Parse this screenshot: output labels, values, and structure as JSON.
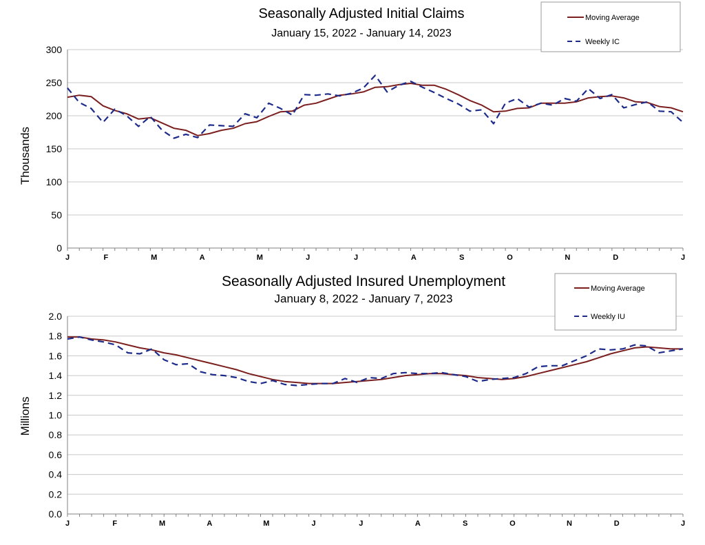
{
  "colors": {
    "moving_average": "#7b1e1e",
    "weekly": "#1c2a8a",
    "grid": "#c8c8c8",
    "axis": "#808080"
  },
  "chart_data": [
    {
      "type": "line",
      "title": "Seasonally Adjusted Initial Claims",
      "subtitle": "January 15, 2022 - January 14, 2023",
      "ylabel": "Thousands",
      "xlabel": "",
      "ylim": [
        0,
        300
      ],
      "yticks": [
        "0",
        "50",
        "100",
        "150",
        "200",
        "250",
        "300"
      ],
      "ytick_values": [
        0,
        50,
        100,
        150,
        200,
        250,
        300
      ],
      "month_labels": [
        "J",
        "F",
        "M",
        "A",
        "M",
        "J",
        "J",
        "A",
        "S",
        "O",
        "N",
        "D",
        "J"
      ],
      "month_label_weeks": [
        0,
        4,
        9,
        14,
        20,
        25,
        30,
        36,
        41,
        46,
        52,
        57,
        64
      ],
      "grid": true,
      "legend_position": "top-right",
      "series": [
        {
          "name": "Moving Average",
          "style": "solid",
          "values": [
            228,
            231,
            229,
            215,
            208,
            203,
            195,
            197,
            189,
            181,
            178,
            170,
            173,
            178,
            181,
            188,
            191,
            199,
            206,
            207,
            216,
            219,
            225,
            231,
            233,
            236,
            243,
            244,
            247,
            249,
            246,
            246,
            240,
            232,
            223,
            216,
            206,
            207,
            211,
            212,
            219,
            219,
            219,
            221,
            227,
            229,
            230,
            227,
            221,
            220,
            214,
            212,
            206
          ]
        },
        {
          "name": "Weekly IC",
          "style": "dashed",
          "values": [
            242,
            220,
            211,
            190,
            210,
            200,
            184,
            199,
            178,
            166,
            172,
            167,
            186,
            185,
            184,
            203,
            197,
            219,
            211,
            201,
            232,
            231,
            233,
            230,
            234,
            242,
            261,
            236,
            246,
            252,
            243,
            235,
            226,
            218,
            207,
            209,
            188,
            219,
            226,
            213,
            219,
            216,
            226,
            222,
            241,
            226,
            232,
            212,
            217,
            221,
            207,
            206,
            190
          ]
        }
      ]
    },
    {
      "type": "line",
      "title": "Seasonally Adjusted Insured Unemployment",
      "subtitle": "January 8, 2022 - January 7, 2023",
      "ylabel": "Millions",
      "xlabel": "",
      "ylim": [
        0,
        2
      ],
      "yticks": [
        "0.0",
        "0.2",
        "0.4",
        "0.6",
        "0.8",
        "1.0",
        "1.2",
        "1.4",
        "1.6",
        "1.8",
        "2.0"
      ],
      "ytick_values": [
        0,
        0.2,
        0.4,
        0.6,
        0.8,
        1.0,
        1.2,
        1.4,
        1.6,
        1.8,
        2.0
      ],
      "month_labels": [
        "J",
        "F",
        "M",
        "A",
        "M",
        "J",
        "J",
        "A",
        "S",
        "O",
        "N",
        "D",
        "J"
      ],
      "month_label_weeks": [
        0,
        5,
        10,
        15,
        21,
        26,
        31,
        37,
        42,
        47,
        53,
        58,
        65
      ],
      "grid": true,
      "legend_position": "top-right",
      "series": [
        {
          "name": "Moving Average",
          "style": "solid",
          "values": [
            1.79,
            1.79,
            1.77,
            1.76,
            1.74,
            1.71,
            1.68,
            1.66,
            1.63,
            1.61,
            1.58,
            1.55,
            1.52,
            1.49,
            1.46,
            1.42,
            1.39,
            1.36,
            1.34,
            1.33,
            1.32,
            1.32,
            1.32,
            1.33,
            1.34,
            1.35,
            1.36,
            1.38,
            1.4,
            1.41,
            1.42,
            1.42,
            1.41,
            1.4,
            1.38,
            1.37,
            1.36,
            1.37,
            1.39,
            1.42,
            1.45,
            1.48,
            1.51,
            1.54,
            1.58,
            1.62,
            1.65,
            1.68,
            1.69,
            1.68,
            1.67,
            1.67
          ]
        },
        {
          "name": "Weekly IU",
          "style": "dashed",
          "values": [
            1.77,
            1.79,
            1.76,
            1.74,
            1.71,
            1.63,
            1.62,
            1.67,
            1.56,
            1.51,
            1.52,
            1.44,
            1.41,
            1.4,
            1.38,
            1.34,
            1.32,
            1.35,
            1.31,
            1.3,
            1.31,
            1.32,
            1.32,
            1.37,
            1.33,
            1.38,
            1.37,
            1.42,
            1.43,
            1.42,
            1.42,
            1.43,
            1.41,
            1.39,
            1.34,
            1.36,
            1.37,
            1.38,
            1.42,
            1.49,
            1.5,
            1.5,
            1.55,
            1.6,
            1.67,
            1.66,
            1.67,
            1.71,
            1.7,
            1.63,
            1.65,
            1.67
          ]
        }
      ]
    }
  ]
}
